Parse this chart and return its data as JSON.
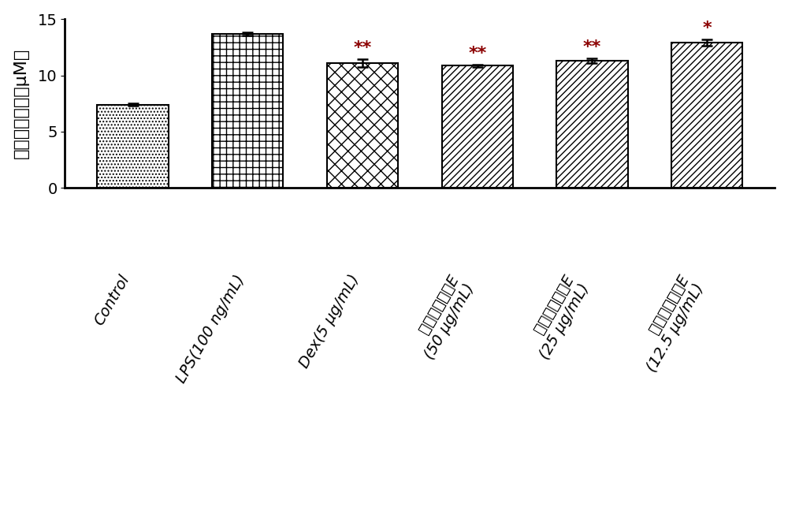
{
  "values": [
    7.4,
    13.7,
    11.1,
    10.85,
    11.3,
    12.9
  ],
  "errors": [
    0.1,
    0.15,
    0.35,
    0.08,
    0.18,
    0.3
  ],
  "significance": [
    "",
    "",
    "**",
    "**",
    "**",
    "*"
  ],
  "sig_color": "#8B0000",
  "ylabel": "亚砂酸盐浓度（μM）",
  "ylim": [
    0,
    15
  ],
  "yticks": [
    0,
    5,
    10,
    15
  ],
  "bar_edgecolor": "#000000",
  "bar_facecolor": "#ffffff",
  "background_color": "#ffffff",
  "label_fontsize": 16,
  "tick_fontsize": 14,
  "sig_fontsize": 16,
  "tick_labels_en": [
    "Control",
    "LPS(100 ng/mL)",
    "Dex(5 μg/mL)"
  ],
  "tick_labels_cn_prefix": "黄花远志皮苷E",
  "tick_labels_cn_suffix": [
    "(50 μg/mL)",
    "(25 μg/mL)",
    "(12.5 μg/mL)"
  ]
}
